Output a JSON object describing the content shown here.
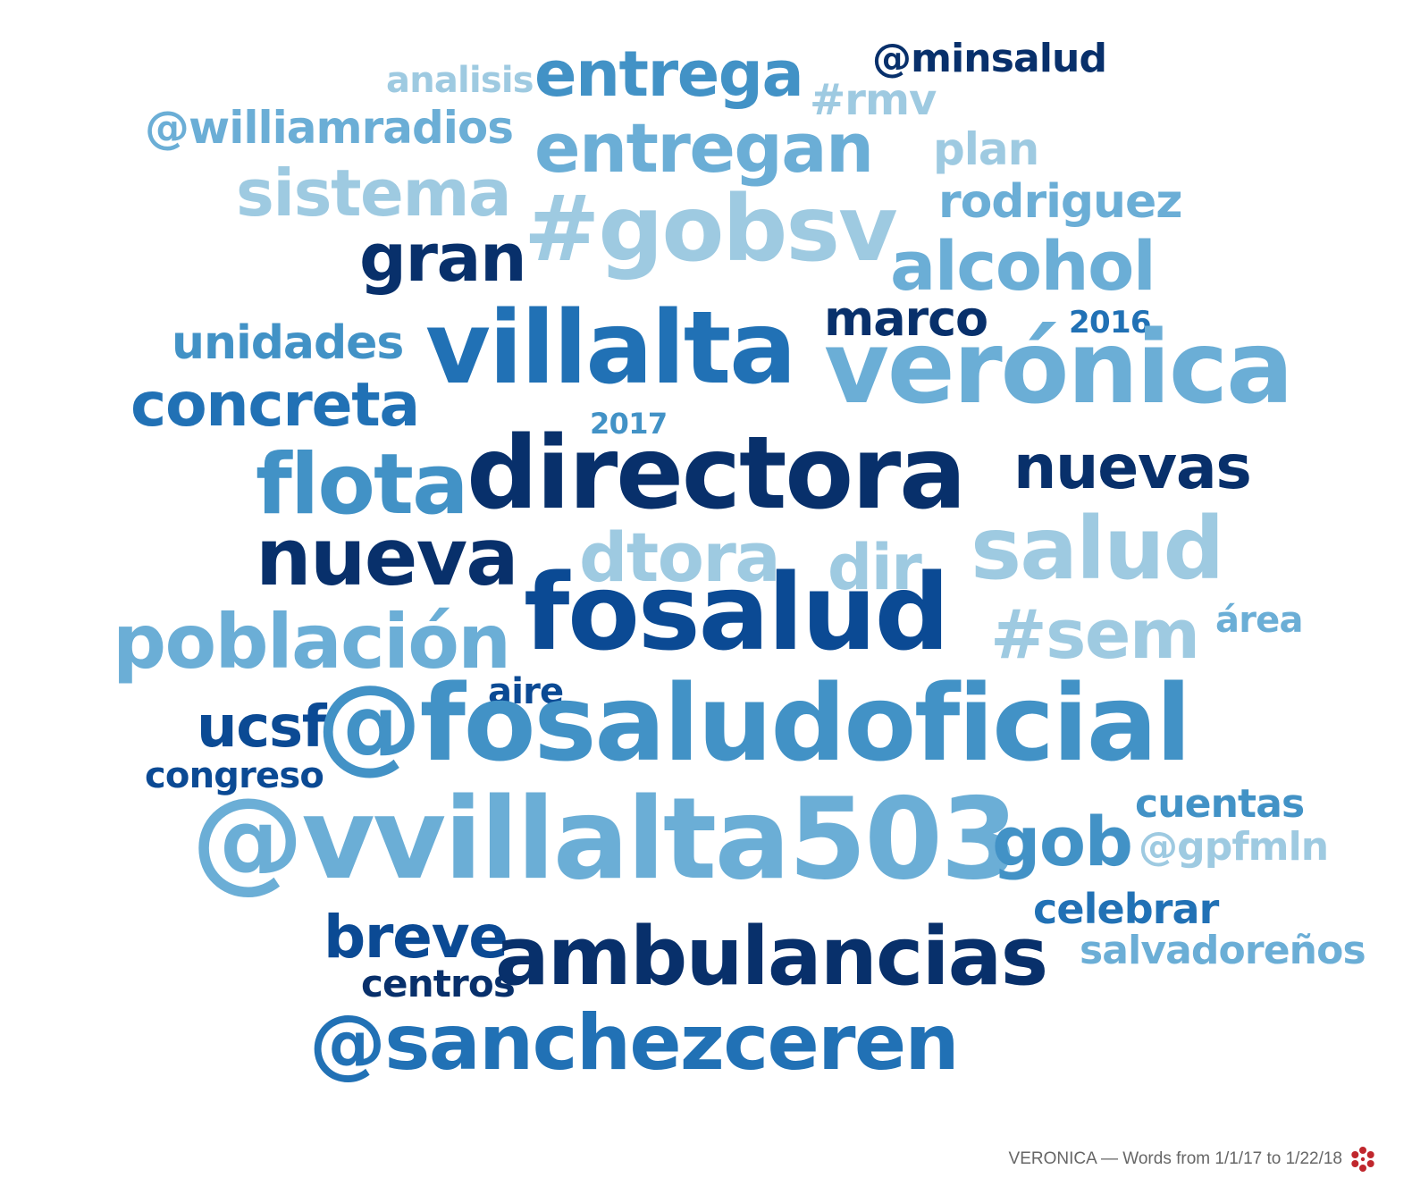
{
  "colors": {
    "c1": "#08306b",
    "c2": "#0b4a94",
    "c3": "#2171b5",
    "c4": "#4292c6",
    "c5": "#6baed6",
    "c6": "#9ecae1"
  },
  "words": [
    {
      "text": "analisis",
      "color": "c6"
    },
    {
      "text": "entrega",
      "color": "c4"
    },
    {
      "text": "@minsalud",
      "color": "c1"
    },
    {
      "text": "#rmv",
      "color": "c6"
    },
    {
      "text": "@williamradios",
      "color": "c5"
    },
    {
      "text": "entregan",
      "color": "c5"
    },
    {
      "text": "plan",
      "color": "c6"
    },
    {
      "text": "sistema",
      "color": "c6"
    },
    {
      "text": "rodriguez",
      "color": "c5"
    },
    {
      "text": "#gobsv",
      "color": "c6"
    },
    {
      "text": "gran",
      "color": "c1"
    },
    {
      "text": "alcohol",
      "color": "c5"
    },
    {
      "text": "marco",
      "color": "c1"
    },
    {
      "text": "2016",
      "color": "c3"
    },
    {
      "text": "unidades",
      "color": "c4"
    },
    {
      "text": "villalta",
      "color": "c3"
    },
    {
      "text": "verónica",
      "color": "c5"
    },
    {
      "text": "concreta",
      "color": "c3"
    },
    {
      "text": "2017",
      "color": "c4"
    },
    {
      "text": "directora",
      "color": "c1"
    },
    {
      "text": "nuevas",
      "color": "c1"
    },
    {
      "text": "flota",
      "color": "c4"
    },
    {
      "text": "nueva",
      "color": "c1"
    },
    {
      "text": "dtora",
      "color": "c6"
    },
    {
      "text": "dir",
      "color": "c6"
    },
    {
      "text": "salud",
      "color": "c6"
    },
    {
      "text": "fosalud",
      "color": "c2"
    },
    {
      "text": "población",
      "color": "c5"
    },
    {
      "text": "#sem",
      "color": "c6"
    },
    {
      "text": "área",
      "color": "c5"
    },
    {
      "text": "aire",
      "color": "c2"
    },
    {
      "text": "ucsf",
      "color": "c2"
    },
    {
      "text": "@fosaludoficial",
      "color": "c4"
    },
    {
      "text": "congreso",
      "color": "c2"
    },
    {
      "text": "cuentas",
      "color": "c4"
    },
    {
      "text": "@vvillalta503",
      "color": "c5"
    },
    {
      "text": "gob",
      "color": "c4"
    },
    {
      "text": "@gpfmln",
      "color": "c6"
    },
    {
      "text": "celebrar",
      "color": "c3"
    },
    {
      "text": "breve",
      "color": "c2"
    },
    {
      "text": "ambulancias",
      "color": "c1"
    },
    {
      "text": "salvadoreños",
      "color": "c5"
    },
    {
      "text": "centros",
      "color": "c1"
    },
    {
      "text": "@sanchezceren",
      "color": "c3"
    }
  ],
  "footer": {
    "caption": "VERONICA — Words from 1/1/17 to 1/22/18",
    "logo_icon": "flower-logo-icon"
  }
}
